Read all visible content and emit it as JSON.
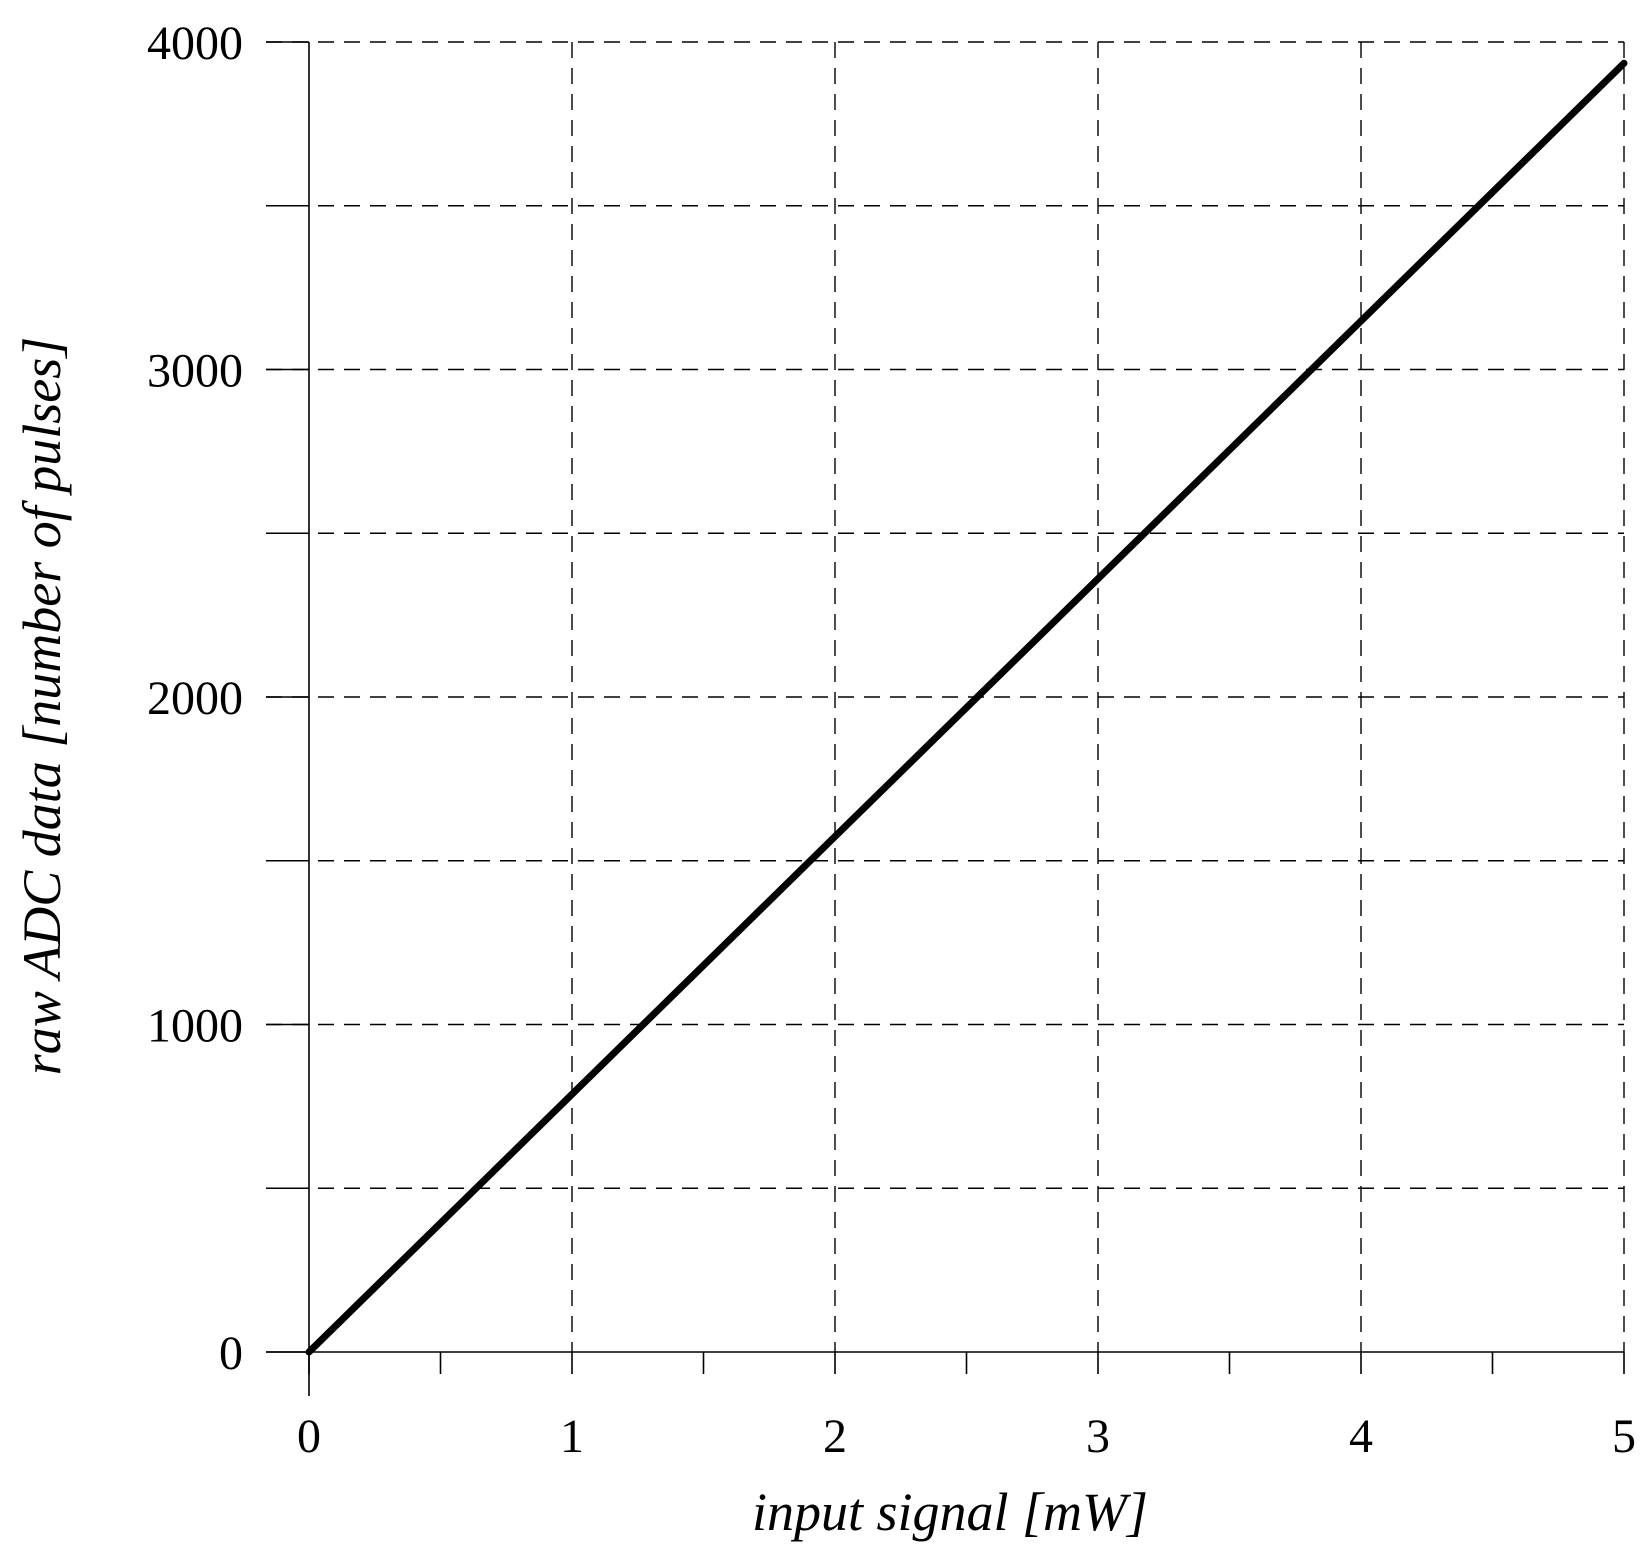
{
  "chart_data": {
    "type": "line",
    "title": "",
    "xlabel": "input signal [mW]",
    "ylabel": "raw ADC data [number of pulses]",
    "xlim": [
      0,
      5
    ],
    "ylim": [
      0,
      4000
    ],
    "xticks": [
      0,
      1,
      2,
      3,
      4,
      5
    ],
    "xtick_labels": [
      "0",
      "1",
      "2",
      "3",
      "4",
      "5"
    ],
    "xminor_ticks": [
      0.5,
      1.5,
      2.5,
      3.5,
      4.5
    ],
    "yticks": [
      0,
      1000,
      2000,
      3000,
      4000
    ],
    "ytick_labels": [
      "0",
      "1000",
      "2000",
      "3000",
      "4000"
    ],
    "yminor_ticks": [
      500,
      1500,
      2500,
      3500
    ],
    "grid": true,
    "line_color": "#000000",
    "series": [
      {
        "x": [
          0,
          1,
          2,
          3,
          4,
          5
        ],
        "y": [
          0,
          787,
          1574,
          2361,
          3148,
          3935
        ]
      }
    ]
  }
}
